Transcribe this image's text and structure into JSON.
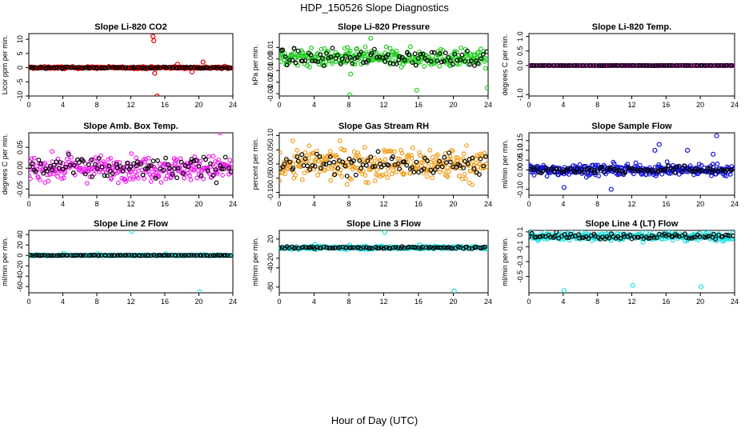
{
  "title": "HDP_150526  Slope Diagnostics",
  "xlabel": "Hour of Day (UTC)",
  "colors": {
    "reference": "#000000",
    "red": "#e00000",
    "green": "#22cc22",
    "magenta": "#ee22ee",
    "orange": "#f0a020",
    "blue": "#1010dd",
    "cyan": "#22e0e0"
  },
  "chart_data": [
    {
      "type": "scatter",
      "title": "Slope Li-820 CO2",
      "ylabel": "Licor ppm per min.",
      "xlim": [
        0,
        24
      ],
      "ylim": [
        -10,
        12
      ],
      "xticks": [
        "0",
        "4",
        "8",
        "12",
        "16",
        "20",
        "24"
      ],
      "yticks": [
        "-10",
        "-5",
        "0",
        "5",
        "10"
      ],
      "grid": false,
      "series": [
        {
          "color_key": "red",
          "base": 0,
          "spread": 0.4,
          "outliers": [
            [
              14.6,
              11
            ],
            [
              14.7,
              9.5
            ],
            [
              15.1,
              -10
            ],
            [
              14.8,
              -2
            ],
            [
              20.5,
              2
            ],
            [
              19.2,
              -1.5
            ],
            [
              17.5,
              1.2
            ]
          ]
        },
        {
          "color_key": "reference",
          "base": 0,
          "spread": 0.3
        }
      ]
    },
    {
      "type": "scatter",
      "title": "Slope Li-820 Pressure",
      "ylabel": "kPa per min.",
      "xlim": [
        0,
        24
      ],
      "ylim": [
        -0.032,
        0.022
      ],
      "xticks": [
        "0",
        "4",
        "8",
        "12",
        "16",
        "20",
        "24"
      ],
      "yticks": [
        "-0.03",
        "-0.02",
        "-0.01",
        "0.00",
        "0.01"
      ],
      "grid": false,
      "series": [
        {
          "color_key": "green",
          "base": 0.001,
          "spread": 0.008,
          "outliers": [
            [
              8.1,
              -0.031
            ],
            [
              15.8,
              -0.027
            ],
            [
              23.9,
              -0.025
            ],
            [
              8.2,
              -0.013
            ],
            [
              10.5,
              0.018
            ]
          ]
        },
        {
          "color_key": "reference",
          "base": 0.001,
          "spread": 0.007
        }
      ]
    },
    {
      "type": "scatter",
      "title": "Slope Li-820 Temp.",
      "ylabel": "degrees C per min.",
      "xlim": [
        0,
        24
      ],
      "ylim": [
        -1.05,
        1.1
      ],
      "xticks": [
        "0",
        "4",
        "8",
        "12",
        "16",
        "20",
        "24"
      ],
      "yticks": [
        "-1.0",
        "0.0",
        "0.5",
        "1.0"
      ],
      "grid": false,
      "series": [
        {
          "color_key": "magenta",
          "base": 0,
          "spread": 0.005
        },
        {
          "color_key": "reference",
          "base": 0,
          "spread": 0.005
        }
      ]
    },
    {
      "type": "scatter",
      "title": "Slope Amb. Box Temp.",
      "ylabel": "degrees C per min.",
      "xlim": [
        0,
        24
      ],
      "ylim": [
        -0.065,
        0.085
      ],
      "xticks": [
        "0",
        "4",
        "8",
        "12",
        "16",
        "20",
        "24"
      ],
      "yticks": [
        "-0.05",
        "0.00",
        "0.05"
      ],
      "grid": false,
      "series": [
        {
          "color_key": "magenta",
          "base": 0,
          "spread": 0.03,
          "outliers": [
            [
              22.5,
              0.085
            ]
          ]
        },
        {
          "color_key": "reference",
          "base": 0,
          "spread": 0.028
        }
      ]
    },
    {
      "type": "scatter",
      "title": "Slope Gas Stream RH",
      "ylabel": "percent per min.",
      "xlim": [
        0,
        24
      ],
      "ylim": [
        -0.11,
        0.11
      ],
      "xticks": [
        "0",
        "4",
        "8",
        "12",
        "16",
        "20",
        "24"
      ],
      "yticks": [
        "-0.10",
        "-0.05",
        "0.00",
        "0.05",
        "0.10"
      ],
      "grid": false,
      "series": [
        {
          "color_key": "orange",
          "base": 0,
          "spread": 0.06
        },
        {
          "color_key": "reference",
          "base": 0,
          "spread": 0.04
        }
      ]
    },
    {
      "type": "scatter",
      "title": "Slope Sample Flow",
      "ylabel": "ml/min per min.",
      "xlim": [
        0,
        24
      ],
      "ylim": [
        -0.13,
        0.19
      ],
      "xticks": [
        "0",
        "4",
        "8",
        "12",
        "16",
        "20",
        "24"
      ],
      "yticks": [
        "-0.10",
        "0.00",
        "0.05",
        "0.10",
        "0.15"
      ],
      "grid": false,
      "series": [
        {
          "color_key": "blue",
          "base": 0,
          "spread": 0.03,
          "outliers": [
            [
              21.9,
              0.175
            ],
            [
              15.2,
              0.13
            ],
            [
              4.1,
              -0.09
            ],
            [
              9.6,
              -0.1
            ],
            [
              14.7,
              0.1
            ],
            [
              21.5,
              0.08
            ],
            [
              18.5,
              0.1
            ]
          ]
        },
        {
          "color_key": "reference",
          "base": 0,
          "spread": 0.02
        }
      ]
    },
    {
      "type": "scatter",
      "title": "Slope Line 2 Flow",
      "ylabel": "ml/min per min.",
      "xlim": [
        0,
        24
      ],
      "ylim": [
        -72,
        48
      ],
      "xticks": [
        "0",
        "4",
        "8",
        "12",
        "16",
        "20",
        "24"
      ],
      "yticks": [
        "-60",
        "-40",
        "-20",
        "0",
        "20",
        "40"
      ],
      "grid": false,
      "series": [
        {
          "color_key": "cyan",
          "base": 0,
          "spread": 1.2,
          "outliers": [
            [
              12.1,
              46
            ],
            [
              20.1,
              -70
            ],
            [
              4.1,
              4
            ],
            [
              8.1,
              3
            ],
            [
              16.1,
              3
            ]
          ]
        },
        {
          "color_key": "reference",
          "base": 0,
          "spread": 0.6
        }
      ]
    },
    {
      "type": "scatter",
      "title": "Slope Line 3 Flow",
      "ylabel": "ml/min per min.",
      "xlim": [
        0,
        24
      ],
      "ylim": [
        -92,
        38
      ],
      "xticks": [
        "0",
        "4",
        "8",
        "12",
        "16",
        "20",
        "24"
      ],
      "yticks": [
        "-80",
        "-40",
        "-20",
        "20"
      ],
      "grid": false,
      "series": [
        {
          "color_key": "cyan",
          "base": 2,
          "spread": 3.5,
          "outliers": [
            [
              12.1,
              34
            ],
            [
              20.1,
              -88
            ],
            [
              4.1,
              9
            ],
            [
              8.1,
              7
            ],
            [
              16.1,
              8
            ]
          ]
        },
        {
          "color_key": "reference",
          "base": 2,
          "spread": 2
        }
      ]
    },
    {
      "type": "scatter",
      "title": "Slope Line 4 (LT) Flow",
      "ylabel": "ml/min per min.",
      "xlim": [
        0,
        24
      ],
      "ylim": [
        -0.72,
        0.12
      ],
      "xticks": [
        "0",
        "4",
        "8",
        "12",
        "16",
        "20",
        "24"
      ],
      "yticks": [
        "-0.5",
        "-0.3",
        "-0.1",
        "0.1"
      ],
      "grid": false,
      "series": [
        {
          "color_key": "cyan",
          "base": 0.04,
          "spread": 0.06,
          "outliers": [
            [
              4.1,
              -0.69
            ],
            [
              12.1,
              -0.62
            ],
            [
              20.1,
              -0.64
            ]
          ]
        },
        {
          "color_key": "reference",
          "base": 0.04,
          "spread": 0.04
        }
      ]
    }
  ]
}
